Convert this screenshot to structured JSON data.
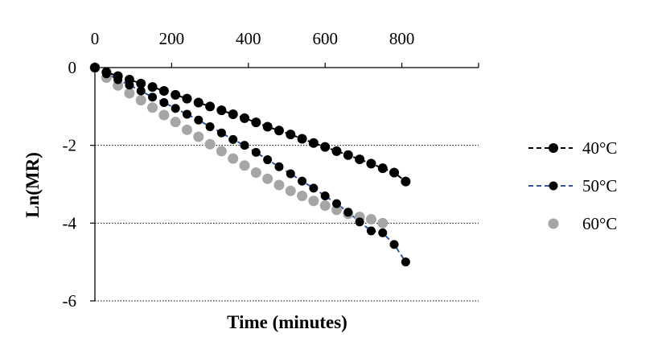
{
  "chart_data": {
    "type": "line",
    "xlabel": "Time (minutes)",
    "ylabel": "Ln(MR)",
    "xlim": [
      0,
      1000
    ],
    "ylim": [
      -6,
      0
    ],
    "x_axis_position": "top",
    "xticks": [
      0,
      200,
      400,
      600,
      800
    ],
    "yticks": [
      0,
      -2,
      -4,
      -6
    ],
    "grid": "horizontal dotted",
    "legend_position": "right",
    "series": [
      {
        "name": "40°C",
        "color": "#000000",
        "line_color": "#000000",
        "line_style": "dashed",
        "x": [
          0,
          30,
          60,
          90,
          120,
          150,
          180,
          210,
          240,
          270,
          300,
          330,
          360,
          390,
          420,
          450,
          480,
          510,
          540,
          570,
          600,
          630,
          660,
          690,
          720,
          750,
          780,
          810
        ],
        "y": [
          0,
          -0.12,
          -0.22,
          -0.31,
          -0.41,
          -0.5,
          -0.6,
          -0.7,
          -0.8,
          -0.9,
          -1.0,
          -1.1,
          -1.2,
          -1.3,
          -1.41,
          -1.52,
          -1.62,
          -1.72,
          -1.83,
          -1.94,
          -2.04,
          -2.15,
          -2.25,
          -2.36,
          -2.47,
          -2.59,
          -2.7,
          -2.93
        ]
      },
      {
        "name": "50°C",
        "color": "#000000",
        "line_color": "#2f55a4",
        "line_style": "dashed",
        "x": [
          0,
          30,
          60,
          90,
          120,
          150,
          180,
          210,
          240,
          270,
          300,
          330,
          360,
          390,
          420,
          450,
          480,
          510,
          540,
          570,
          600,
          630,
          660,
          690,
          720,
          750,
          780,
          810
        ],
        "y": [
          0,
          -0.16,
          -0.31,
          -0.45,
          -0.6,
          -0.76,
          -0.9,
          -1.05,
          -1.2,
          -1.35,
          -1.52,
          -1.68,
          -1.85,
          -2.0,
          -2.18,
          -2.37,
          -2.55,
          -2.73,
          -2.92,
          -3.1,
          -3.3,
          -3.5,
          -3.72,
          -3.97,
          -4.2,
          -4.25,
          -4.55,
          -5.0
        ]
      },
      {
        "name": "60°C",
        "color": "#a6a6a6",
        "line_color": "",
        "line_style": "none",
        "x": [
          0,
          30,
          60,
          90,
          120,
          150,
          180,
          210,
          240,
          270,
          300,
          330,
          360,
          390,
          420,
          450,
          480,
          510,
          540,
          570,
          600,
          630,
          660,
          690,
          720,
          750
        ],
        "y": [
          0,
          -0.26,
          -0.46,
          -0.66,
          -0.84,
          -1.03,
          -1.22,
          -1.4,
          -1.6,
          -1.78,
          -1.97,
          -2.15,
          -2.34,
          -2.52,
          -2.7,
          -2.86,
          -3.02,
          -3.17,
          -3.3,
          -3.43,
          -3.55,
          -3.66,
          -3.76,
          -3.84,
          -3.9,
          -4.0
        ]
      }
    ]
  }
}
